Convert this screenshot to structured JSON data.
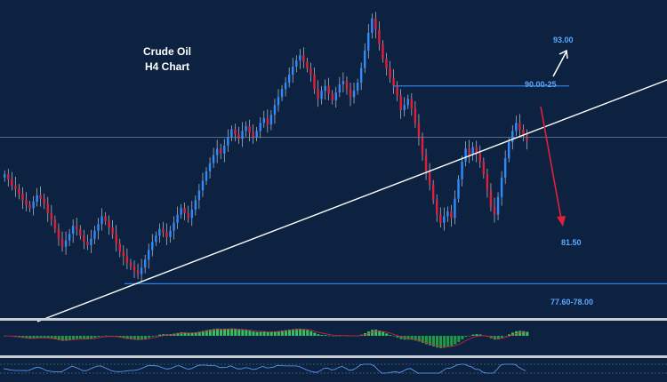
{
  "chart_data": {
    "type": "candlestick",
    "title_line1": "Crude Oil",
    "title_line2": "H4 Chart",
    "colors": {
      "background": "#0d2240",
      "bull": "#2e8bff",
      "bear": "#e0203a",
      "level_line": "#2f7fe0",
      "trendline": "#ffffff",
      "level_text": "#5aa8ff",
      "macd_pos": "#38c060",
      "macd_neg": "#1f9a48",
      "panel_separator": "#c8ccd4"
    },
    "y_range": [
      76,
      95
    ],
    "levels": [
      {
        "label": "93.00",
        "price": 93.0,
        "kind": "target"
      },
      {
        "label": "90.00-25",
        "price": 90.1,
        "kind": "resistance"
      },
      {
        "label": "81.50",
        "price": 81.5,
        "kind": "target"
      },
      {
        "label": "77.60-78.00",
        "price": 77.8,
        "kind": "support"
      }
    ],
    "current_price_line": 86.9,
    "closes": [
      84.6,
      84.3,
      83.9,
      83.7,
      83.4,
      83.0,
      82.7,
      82.5,
      82.9,
      83.3,
      83.1,
      82.8,
      82.2,
      81.8,
      81.2,
      80.6,
      80.1,
      80.5,
      80.9,
      81.4,
      81.2,
      80.8,
      80.4,
      80.2,
      80.6,
      81.1,
      81.5,
      82.0,
      81.7,
      81.3,
      80.9,
      80.3,
      79.8,
      79.5,
      79.1,
      78.9,
      78.6,
      78.4,
      78.8,
      79.3,
      79.9,
      80.4,
      80.8,
      81.2,
      81.0,
      80.7,
      81.1,
      81.6,
      82.1,
      82.5,
      82.2,
      81.9,
      82.4,
      83.0,
      83.6,
      84.2,
      84.8,
      85.3,
      85.8,
      86.2,
      85.9,
      86.4,
      86.9,
      87.4,
      87.1,
      86.8,
      87.3,
      87.6,
      87.2,
      86.9,
      87.3,
      87.8,
      88.1,
      87.7,
      88.3,
      88.9,
      89.4,
      89.9,
      90.3,
      90.8,
      91.3,
      91.7,
      92.0,
      91.6,
      91.2,
      90.8,
      89.9,
      89.3,
      89.8,
      90.1,
      89.6,
      89.2,
      89.7,
      90.2,
      90.4,
      89.9,
      89.4,
      89.8,
      90.3,
      91.2,
      92.3,
      93.4,
      94.3,
      93.6,
      92.7,
      91.8,
      91.2,
      90.6,
      90.1,
      89.5,
      88.6,
      88.9,
      89.3,
      88.7,
      87.8,
      86.9,
      85.8,
      84.8,
      84.0,
      83.0,
      82.1,
      81.6,
      82.0,
      82.3,
      81.9,
      83.1,
      84.3,
      85.4,
      86.2,
      85.8,
      86.3,
      85.9,
      85.4,
      84.6,
      83.6,
      82.6,
      82.1,
      83.2,
      84.4,
      85.6,
      86.6,
      87.3,
      87.8,
      87.4,
      87.0,
      86.7
    ]
  }
}
